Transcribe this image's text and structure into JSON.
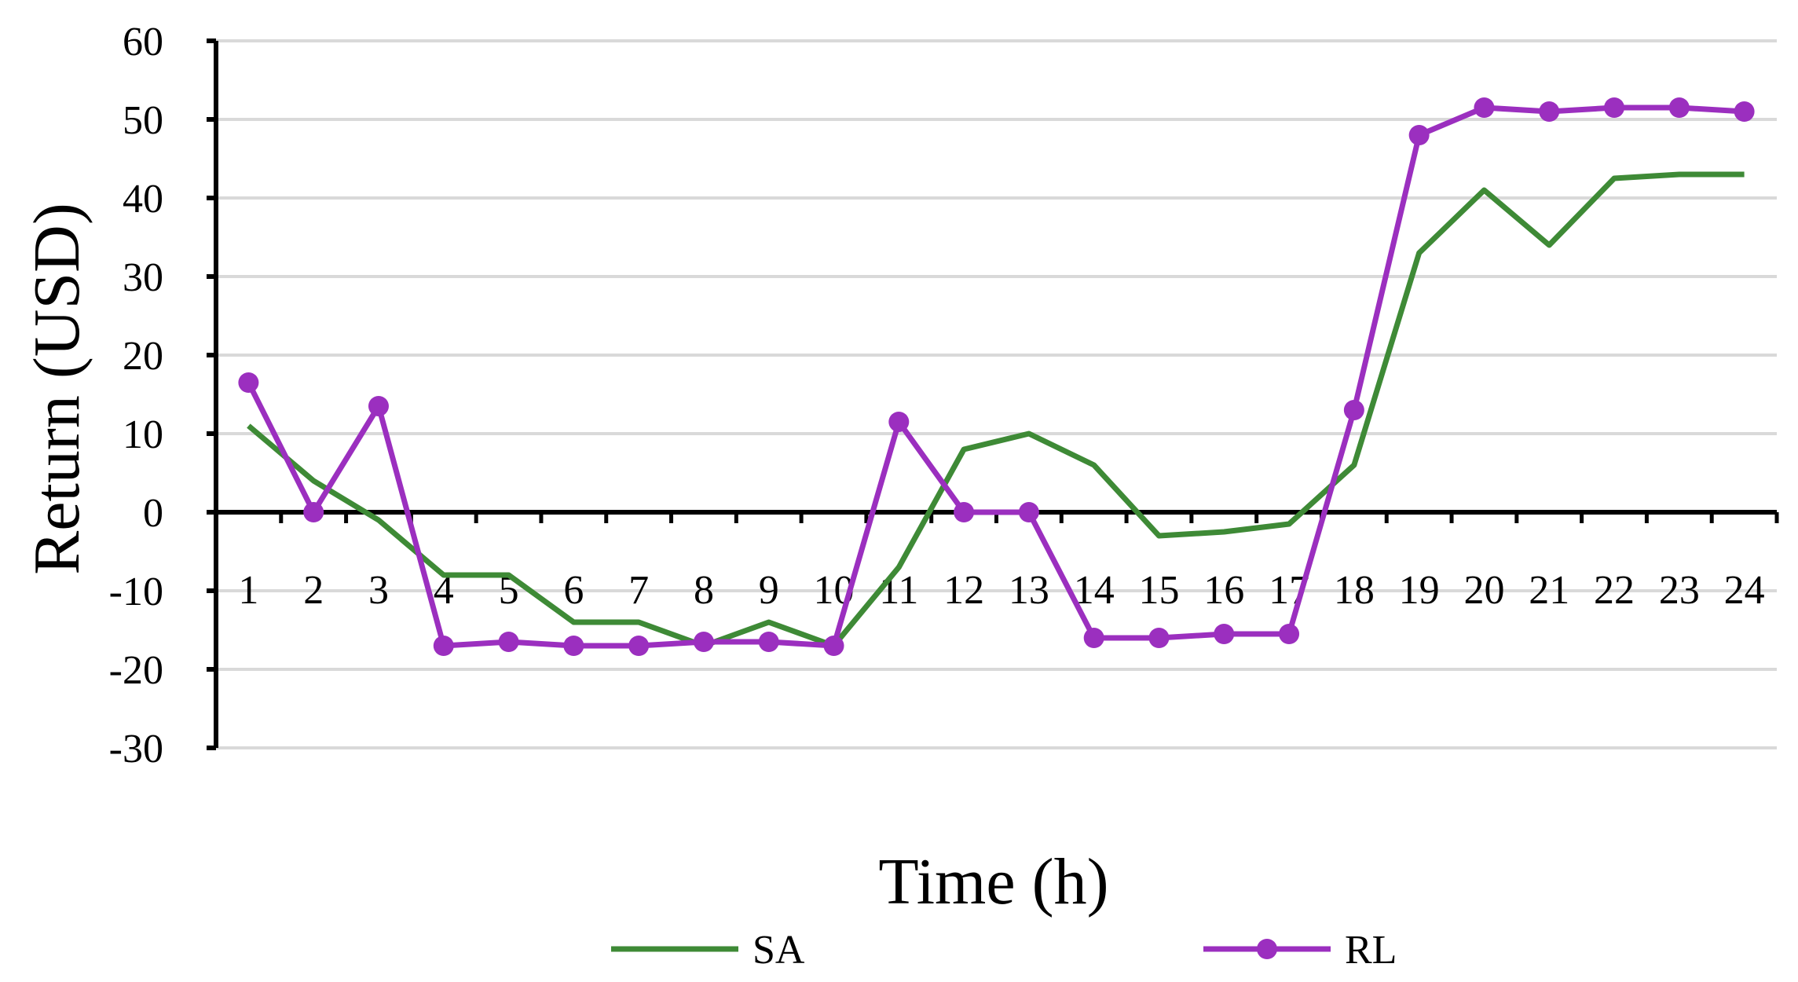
{
  "chart_data": {
    "type": "line",
    "title": "",
    "xlabel": "Time (h)",
    "ylabel": "Return (USD)",
    "x": [
      1,
      2,
      3,
      4,
      5,
      6,
      7,
      8,
      9,
      10,
      11,
      12,
      13,
      14,
      15,
      16,
      17,
      18,
      19,
      20,
      21,
      22,
      23,
      24
    ],
    "x_tick_labels": [
      "1",
      "2",
      "3",
      "4",
      "5",
      "6",
      "7",
      "8",
      "9",
      "10",
      "11",
      "12",
      "13",
      "14",
      "15",
      "16",
      "17",
      "18",
      "19",
      "20",
      "21",
      "22",
      "23",
      "24"
    ],
    "ylim": [
      -30,
      60
    ],
    "y_ticks": [
      60,
      50,
      40,
      30,
      20,
      10,
      0,
      -10,
      -20,
      -30
    ],
    "y_tick_labels": [
      "60",
      "50",
      "40",
      "30",
      "20",
      "10",
      "0",
      "-10",
      "-20",
      "-30"
    ],
    "grid": true,
    "legend_position": "bottom",
    "series": [
      {
        "name": "SA",
        "color": "#3e8a36",
        "marker": "none",
        "values": [
          11,
          4,
          -1,
          -8,
          -8,
          -14,
          -14,
          -17,
          -14,
          -17,
          -7,
          8,
          10,
          6,
          -3,
          -2.5,
          -1.5,
          6,
          33,
          41,
          34,
          42.5,
          43,
          43
        ]
      },
      {
        "name": "RL",
        "color": "#9b2fbf",
        "marker": "circle",
        "values": [
          16.5,
          0,
          13.5,
          -17,
          -16.5,
          -17,
          -17,
          -16.5,
          -16.5,
          -17,
          11.5,
          0,
          0,
          -16,
          -16,
          -15.5,
          -15.5,
          13,
          48,
          51.5,
          51,
          51.5,
          51.5,
          51
        ]
      }
    ]
  }
}
